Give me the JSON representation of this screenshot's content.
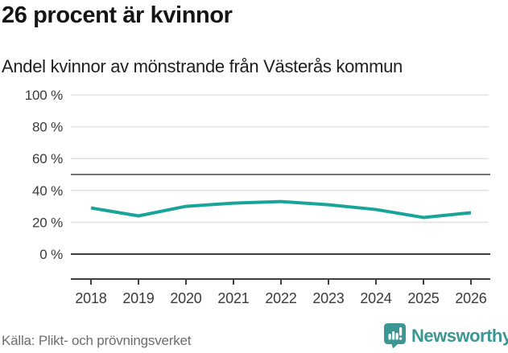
{
  "chart_data": {
    "type": "line",
    "title": "26 procent är kvinnor",
    "subtitle": "Andel kvinnor av mönstrande från Västerås kommun",
    "source": "Källa: Plikt- och prövningsverket",
    "x": [
      2018,
      2019,
      2020,
      2021,
      2022,
      2023,
      2024,
      2025,
      2026
    ],
    "series": [
      {
        "name": "Andel kvinnor av mönstrande",
        "values": [
          29,
          24,
          30,
          32,
          33,
          31,
          28,
          23,
          26
        ],
        "color": "#19a49a"
      }
    ],
    "ylim": [
      0,
      100
    ],
    "yticks": [
      0,
      20,
      40,
      60,
      80,
      100
    ],
    "ytick_suffix": " %",
    "reference_line": 50,
    "grid": true,
    "legend": "none"
  },
  "footer": {
    "brand": "Newsworthy",
    "brand_color": "#3b9793"
  },
  "colors": {
    "accent": "#19a49a",
    "grid": "#e2e2e2",
    "axis_dark": "#3e3e3e",
    "reference": "#737373",
    "text_muted": "#6d6d6d",
    "text_dark": "#141414"
  }
}
